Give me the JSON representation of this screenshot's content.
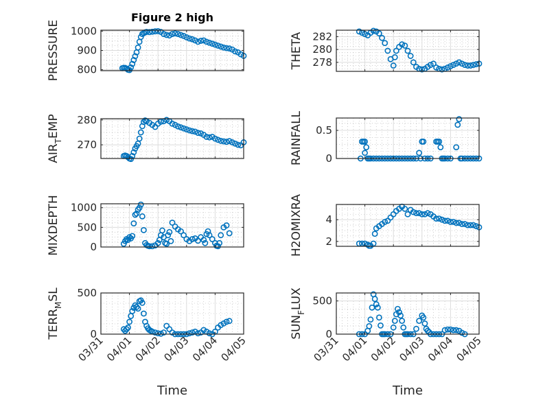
{
  "figure_title": "Figure 2 high",
  "colors": {
    "marker": "#0072BD",
    "axis": "#262626",
    "grid": "#dcdcdc",
    "minor_grid": "#b0b0b0"
  },
  "chart_data": [
    {
      "type": "scatter",
      "id": "pressure",
      "title": "Figure 2 high",
      "ylabel": "PRESSURE",
      "ylabel_sub": null,
      "xlabel": "",
      "xlim": [
        0,
        5
      ],
      "ylim": [
        795,
        1005
      ],
      "xticks": [
        0,
        1,
        2,
        3,
        4,
        5
      ],
      "xticklabels": [
        "03/31",
        "04/01",
        "04/02",
        "04/03",
        "04/04",
        "04/05"
      ],
      "show_xticklabels": false,
      "yticks": [
        800,
        900,
        1000
      ],
      "yticklabels": [
        "800",
        "900",
        "1000"
      ],
      "grid": true,
      "minor_grid": true,
      "series": [
        {
          "name": "PRESSURE",
          "x": [
            0.75,
            0.8,
            0.85,
            0.9,
            0.95,
            1.0,
            1.05,
            1.1,
            1.15,
            1.2,
            1.25,
            1.3,
            1.35,
            1.4,
            1.45,
            1.5,
            1.55,
            1.6,
            1.7,
            1.8,
            1.9,
            2.0,
            2.1,
            2.2,
            2.3,
            2.4,
            2.5,
            2.6,
            2.7,
            2.8,
            2.9,
            3.0,
            3.1,
            3.2,
            3.3,
            3.4,
            3.5,
            3.6,
            3.7,
            3.8,
            3.9,
            4.0,
            4.1,
            4.2,
            4.3,
            4.4,
            4.5,
            4.6,
            4.7,
            4.8,
            4.9,
            5.0
          ],
          "y": [
            808,
            810,
            809,
            806,
            800,
            798,
            812,
            830,
            850,
            870,
            890,
            915,
            945,
            970,
            985,
            990,
            994,
            996,
            995,
            997,
            999,
            1000,
            996,
            985,
            980,
            978,
            985,
            988,
            985,
            980,
            975,
            968,
            962,
            958,
            952,
            945,
            950,
            952,
            945,
            940,
            935,
            930,
            925,
            920,
            915,
            912,
            910,
            905,
            895,
            890,
            880,
            872
          ]
        }
      ]
    },
    {
      "type": "scatter",
      "id": "theta",
      "ylabel": "THETA",
      "ylabel_sub": null,
      "xlabel": "",
      "xlim": [
        0,
        5
      ],
      "ylim": [
        276.6,
        283.0
      ],
      "xticks": [
        0,
        1,
        2,
        3,
        4,
        5
      ],
      "show_xticklabels": false,
      "yticks": [
        278,
        280,
        282
      ],
      "yticklabels": [
        "278",
        "280",
        "282"
      ],
      "grid": true,
      "minor_grid": true,
      "series": [
        {
          "name": "THETA",
          "x": [
            0.8,
            0.9,
            1.0,
            1.1,
            1.2,
            1.3,
            1.4,
            1.5,
            1.6,
            1.7,
            1.8,
            1.9,
            2.0,
            2.05,
            2.1,
            2.2,
            2.3,
            2.4,
            2.5,
            2.6,
            2.7,
            2.8,
            2.9,
            3.0,
            3.1,
            3.2,
            3.3,
            3.4,
            3.5,
            3.6,
            3.7,
            3.8,
            3.9,
            4.0,
            4.1,
            4.2,
            4.3,
            4.4,
            4.5,
            4.6,
            4.7,
            4.8,
            4.9,
            5.0
          ],
          "y": [
            282.8,
            282.6,
            282.4,
            282.2,
            282.6,
            282.9,
            282.8,
            282.5,
            281.8,
            281.0,
            279.8,
            278.5,
            277.5,
            278.8,
            279.8,
            280.4,
            280.8,
            280.6,
            279.8,
            279.0,
            278.0,
            277.3,
            277.0,
            276.9,
            277.0,
            277.3,
            277.6,
            277.8,
            277.2,
            277.0,
            276.9,
            277.0,
            277.2,
            277.4,
            277.6,
            277.8,
            278.0,
            277.8,
            277.6,
            277.5,
            277.5,
            277.6,
            277.7,
            277.8
          ]
        }
      ]
    },
    {
      "type": "scatter",
      "id": "air_temp",
      "ylabel": "AIR",
      "ylabel_sub": "T",
      "ylabel_rest": "EMP",
      "xlabel": "",
      "xlim": [
        0,
        5
      ],
      "ylim": [
        264.5,
        280.5
      ],
      "xticks": [
        0,
        1,
        2,
        3,
        4,
        5
      ],
      "show_xticklabels": false,
      "yticks": [
        270,
        280
      ],
      "yticklabels": [
        "270",
        "280"
      ],
      "grid": true,
      "minor_grid": true,
      "series": [
        {
          "name": "AIR_TEMP",
          "x": [
            0.8,
            0.85,
            0.9,
            0.95,
            1.0,
            1.05,
            1.1,
            1.15,
            1.2,
            1.25,
            1.3,
            1.35,
            1.4,
            1.45,
            1.5,
            1.55,
            1.6,
            1.7,
            1.8,
            1.9,
            2.0,
            2.1,
            2.2,
            2.3,
            2.4,
            2.5,
            2.6,
            2.7,
            2.8,
            2.9,
            3.0,
            3.1,
            3.2,
            3.3,
            3.4,
            3.5,
            3.6,
            3.7,
            3.8,
            3.9,
            4.0,
            4.1,
            4.2,
            4.3,
            4.4,
            4.5,
            4.6,
            4.7,
            4.8,
            4.9,
            5.0
          ],
          "y": [
            265.5,
            265.7,
            265.5,
            265.0,
            264.5,
            264.3,
            265.5,
            267.0,
            268.5,
            269.5,
            270.5,
            272.5,
            275.0,
            277.5,
            279.2,
            279.8,
            279.5,
            278.8,
            278.0,
            277.2,
            278.5,
            279.3,
            279.5,
            280.0,
            279.5,
            278.5,
            278.0,
            277.4,
            277.0,
            276.6,
            276.2,
            275.8,
            275.5,
            275.3,
            274.8,
            274.6,
            274.0,
            273.2,
            273.0,
            273.2,
            272.5,
            272.0,
            271.6,
            271.4,
            271.2,
            271.5,
            271.0,
            270.5,
            270.0,
            269.8,
            271.0
          ]
        }
      ]
    },
    {
      "type": "scatter",
      "id": "rainfall",
      "ylabel": "RAINFALL",
      "ylabel_sub": null,
      "xlabel": "",
      "xlim": [
        0,
        5
      ],
      "ylim": [
        0,
        0.72
      ],
      "xticks": [
        0,
        1,
        2,
        3,
        4,
        5
      ],
      "show_xticklabels": false,
      "yticks": [
        0,
        0.5
      ],
      "yticklabels": [
        "0",
        "0.5"
      ],
      "grid": true,
      "minor_grid": true,
      "series": [
        {
          "name": "RAINFALL",
          "x": [
            0.85,
            0.9,
            0.95,
            1.0,
            1.0,
            1.05,
            1.1,
            1.15,
            1.2,
            1.3,
            1.4,
            1.5,
            1.6,
            1.7,
            1.8,
            1.9,
            2.0,
            2.1,
            2.2,
            2.3,
            2.4,
            2.5,
            2.6,
            2.7,
            2.8,
            2.9,
            2.95,
            3.0,
            3.05,
            3.1,
            3.2,
            3.3,
            3.5,
            3.55,
            3.6,
            3.65,
            3.7,
            3.75,
            3.8,
            3.9,
            4.0,
            4.2,
            4.25,
            4.3,
            4.35,
            4.4,
            4.5,
            4.6,
            4.7,
            4.8,
            4.9,
            5.0
          ],
          "y": [
            0,
            0.3,
            0.3,
            0.3,
            0.1,
            0.2,
            0,
            0,
            0,
            0,
            0,
            0,
            0,
            0,
            0,
            0,
            0,
            0,
            0,
            0,
            0,
            0,
            0,
            0,
            0,
            0.1,
            0,
            0.3,
            0.3,
            0,
            0,
            0,
            0.3,
            0.3,
            0.3,
            0.2,
            0,
            0,
            0,
            0,
            0,
            0.2,
            0.6,
            0.7,
            0,
            0,
            0,
            0,
            0,
            0,
            0,
            0
          ]
        }
      ]
    },
    {
      "type": "scatter",
      "id": "mixdepth",
      "ylabel": "MIXDEPTH",
      "ylabel_sub": null,
      "xlabel": "",
      "xlim": [
        0,
        5
      ],
      "ylim": [
        0,
        1100
      ],
      "xticks": [
        0,
        1,
        2,
        3,
        4,
        5
      ],
      "show_xticklabels": false,
      "yticks": [
        0,
        500,
        1000
      ],
      "yticklabels": [
        "0",
        "500",
        "1000"
      ],
      "grid": true,
      "minor_grid": true,
      "series": [
        {
          "name": "MIXDEPTH",
          "x": [
            0.8,
            0.85,
            0.9,
            0.95,
            1.0,
            1.05,
            1.1,
            1.15,
            1.2,
            1.25,
            1.3,
            1.35,
            1.4,
            1.45,
            1.5,
            1.55,
            1.6,
            1.65,
            1.7,
            1.8,
            1.9,
            2.0,
            2.05,
            2.1,
            2.15,
            2.2,
            2.25,
            2.3,
            2.35,
            2.4,
            2.45,
            2.5,
            2.6,
            2.7,
            2.8,
            2.9,
            3.0,
            3.1,
            3.2,
            3.3,
            3.4,
            3.5,
            3.6,
            3.65,
            3.7,
            3.75,
            3.8,
            3.9,
            4.0,
            4.05,
            4.1,
            4.15,
            4.2,
            4.3,
            4.4,
            4.5
          ],
          "y": [
            80,
            150,
            200,
            180,
            250,
            220,
            280,
            600,
            820,
            850,
            950,
            1000,
            1080,
            780,
            430,
            100,
            50,
            30,
            20,
            20,
            40,
            100,
            180,
            300,
            420,
            250,
            100,
            80,
            300,
            380,
            150,
            620,
            520,
            450,
            400,
            300,
            200,
            150,
            200,
            220,
            160,
            250,
            180,
            100,
            330,
            400,
            300,
            200,
            100,
            30,
            20,
            100,
            300,
            500,
            550,
            350
          ]
        }
      ]
    },
    {
      "type": "scatter",
      "id": "h2omixra",
      "ylabel": "H2OMIXRA",
      "ylabel_sub": null,
      "xlabel": "",
      "xlim": [
        0,
        5
      ],
      "ylim": [
        1.55,
        5.4
      ],
      "xticks": [
        0,
        1,
        2,
        3,
        4,
        5
      ],
      "show_xticklabels": false,
      "yticks": [
        2,
        4
      ],
      "yticklabels": [
        "2",
        "4"
      ],
      "grid": true,
      "minor_grid": true,
      "series": [
        {
          "name": "H2OMIXRA",
          "x": [
            0.8,
            0.9,
            1.0,
            1.1,
            1.15,
            1.2,
            1.3,
            1.35,
            1.4,
            1.5,
            1.6,
            1.7,
            1.8,
            1.9,
            2.0,
            2.1,
            2.2,
            2.3,
            2.4,
            2.5,
            2.6,
            2.7,
            2.8,
            2.9,
            3.0,
            3.1,
            3.2,
            3.3,
            3.4,
            3.5,
            3.6,
            3.7,
            3.8,
            3.9,
            4.0,
            4.1,
            4.2,
            4.3,
            4.4,
            4.5,
            4.6,
            4.7,
            4.8,
            4.9,
            5.0
          ],
          "y": [
            1.8,
            1.8,
            1.8,
            1.7,
            1.6,
            1.6,
            1.8,
            2.7,
            3.2,
            3.4,
            3.6,
            3.8,
            3.9,
            4.2,
            4.5,
            4.8,
            5.0,
            5.2,
            5.0,
            4.5,
            4.9,
            4.7,
            4.6,
            4.6,
            4.5,
            4.5,
            4.6,
            4.5,
            4.3,
            4.1,
            4.1,
            4.0,
            3.9,
            3.9,
            3.8,
            3.8,
            3.7,
            3.7,
            3.6,
            3.6,
            3.5,
            3.5,
            3.5,
            3.4,
            3.3
          ]
        }
      ]
    },
    {
      "type": "scatter",
      "id": "terr_msl",
      "ylabel": "TERR",
      "ylabel_sub": "M",
      "ylabel_rest": "SL",
      "xlabel": "Time",
      "xlim": [
        0,
        5
      ],
      "ylim": [
        0,
        500
      ],
      "xticks": [
        0,
        1,
        2,
        3,
        4,
        5
      ],
      "xticklabels": [
        "03/31",
        "04/01",
        "04/02",
        "04/03",
        "04/04",
        "04/05"
      ],
      "show_xticklabels": true,
      "yticks": [
        0,
        500
      ],
      "yticklabels": [
        "0",
        "500"
      ],
      "grid": true,
      "minor_grid": true,
      "series": [
        {
          "name": "TERR_MSL",
          "x": [
            0.8,
            0.85,
            0.9,
            0.95,
            1.0,
            1.05,
            1.1,
            1.15,
            1.2,
            1.25,
            1.3,
            1.35,
            1.4,
            1.45,
            1.5,
            1.55,
            1.6,
            1.65,
            1.7,
            1.75,
            1.8,
            1.9,
            2.0,
            2.1,
            2.2,
            2.3,
            2.4,
            2.5,
            2.6,
            2.7,
            2.8,
            2.9,
            3.0,
            3.1,
            3.2,
            3.3,
            3.4,
            3.5,
            3.6,
            3.7,
            3.8,
            3.9,
            4.0,
            4.1,
            4.2,
            4.3,
            4.4,
            4.5
          ],
          "y": [
            60,
            40,
            60,
            80,
            150,
            220,
            280,
            320,
            350,
            330,
            310,
            400,
            410,
            380,
            250,
            150,
            100,
            70,
            50,
            40,
            30,
            20,
            10,
            5,
            20,
            100,
            60,
            20,
            0,
            0,
            0,
            0,
            0,
            10,
            20,
            30,
            10,
            20,
            50,
            30,
            10,
            0,
            30,
            80,
            110,
            130,
            150,
            160
          ]
        }
      ]
    },
    {
      "type": "scatter",
      "id": "sunflux",
      "ylabel": "SUN",
      "ylabel_sub": "F",
      "ylabel_rest": "LUX",
      "xlabel": "Time",
      "xlim": [
        0,
        5
      ],
      "ylim": [
        0,
        620
      ],
      "xticks": [
        0,
        1,
        2,
        3,
        4,
        5
      ],
      "xticklabels": [
        "03/31",
        "04/01",
        "04/02",
        "04/03",
        "04/04",
        "04/05"
      ],
      "show_xticklabels": true,
      "yticks": [
        0,
        500
      ],
      "yticklabels": [
        "0",
        "500"
      ],
      "grid": true,
      "minor_grid": true,
      "series": [
        {
          "name": "SUN_FLUX",
          "x": [
            0.8,
            0.9,
            1.0,
            1.1,
            1.15,
            1.2,
            1.25,
            1.3,
            1.35,
            1.4,
            1.45,
            1.5,
            1.55,
            1.6,
            1.65,
            1.7,
            1.8,
            1.9,
            2.0,
            2.05,
            2.1,
            2.15,
            2.2,
            2.25,
            2.3,
            2.35,
            2.4,
            2.45,
            2.5,
            2.6,
            2.7,
            2.8,
            2.9,
            3.0,
            3.05,
            3.1,
            3.15,
            3.2,
            3.25,
            3.3,
            3.4,
            3.5,
            3.6,
            3.7,
            3.8,
            3.9,
            4.0,
            4.1,
            4.2,
            4.3,
            4.4,
            4.5
          ],
          "y": [
            0,
            0,
            0,
            50,
            120,
            220,
            400,
            600,
            530,
            450,
            400,
            250,
            130,
            0,
            0,
            0,
            0,
            0,
            100,
            200,
            300,
            380,
            330,
            280,
            200,
            100,
            0,
            0,
            0,
            0,
            0,
            80,
            200,
            280,
            250,
            160,
            80,
            50,
            30,
            0,
            0,
            0,
            0,
            0,
            60,
            70,
            70,
            60,
            60,
            50,
            20,
            0
          ]
        }
      ]
    }
  ]
}
